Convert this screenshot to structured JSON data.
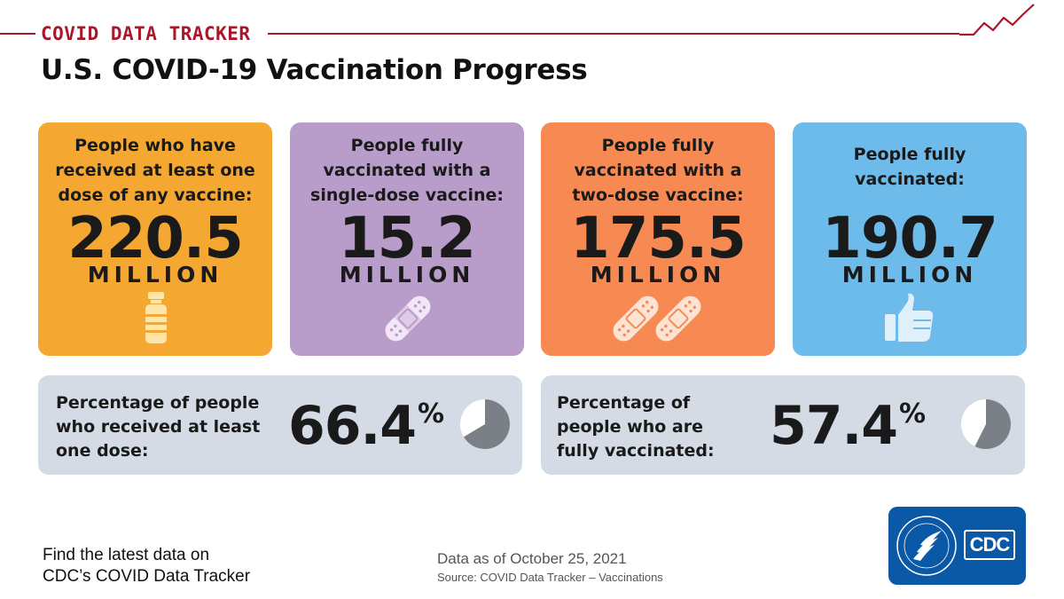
{
  "header": {
    "tracker_label": "COVID DATA TRACKER",
    "title": "U.S. COVID-19 Vaccination Progress"
  },
  "cards": [
    {
      "label_lines": [
        "People who have",
        "received at least one",
        "dose of any vaccine:"
      ],
      "value": "220.5",
      "unit": "MILLION",
      "color": "#f4a831",
      "icon": "vaccine-vial-icon"
    },
    {
      "label_lines": [
        "People fully",
        "vaccinated with a",
        "single-dose vaccine:"
      ],
      "value": "15.2",
      "unit": "MILLION",
      "color": "#b89cc9",
      "icon": "bandage-icon"
    },
    {
      "label_lines": [
        "People fully",
        "vaccinated with a",
        "two-dose vaccine:"
      ],
      "value": "175.5",
      "unit": "MILLION",
      "color": "#f78a52",
      "icon": "two-bandages-icon"
    },
    {
      "label_lines": [
        "People fully",
        "vaccinated:"
      ],
      "value": "190.7",
      "unit": "MILLION",
      "color": "#6cbbeb",
      "icon": "thumbs-up-icon"
    }
  ],
  "percentages": [
    {
      "label_lines": [
        "Percentage of people",
        "who received at least",
        "one dose:"
      ],
      "value": "66.4",
      "sign": "%",
      "fraction": 0.664
    },
    {
      "label_lines": [
        "Percentage of",
        "people who are",
        "fully vaccinated:"
      ],
      "value": "57.4",
      "sign": "%",
      "fraction": 0.574
    }
  ],
  "footer": {
    "find_line_1": "Find the latest data on",
    "find_line_2": "CDC’s COVID Data Tracker",
    "as_of": "Data as of October 25, 2021",
    "source": "Source: COVID Data Tracker – Vaccinations",
    "logo_text": "CDC"
  },
  "colors": {
    "accent": "#a8182a",
    "panel": "#d4dbe5",
    "pie_fill": "#7b7f86",
    "logo_blue": "#0b58a6"
  }
}
